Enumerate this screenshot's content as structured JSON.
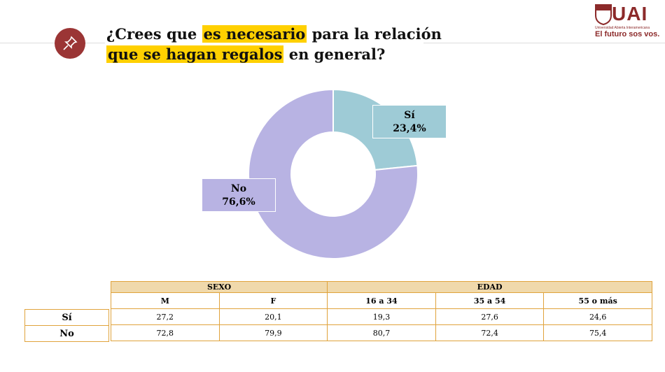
{
  "title": {
    "part1": "¿Crees que ",
    "hl1": "es necesario",
    "part2": " para la relación",
    "hl2": "que se hagan regalos",
    "part3": " en general?"
  },
  "logo": {
    "name": "UAI",
    "subtitle": "Universidad Abierta Interamericana",
    "slogan": "El futuro sos vos."
  },
  "colors": {
    "si": "#9ecbd6",
    "no": "#b8b3e3",
    "highlight": "#ffd000",
    "accent": "#9b3535"
  },
  "chart_data": {
    "type": "pie",
    "donut": true,
    "categories": [
      "Sí",
      "No"
    ],
    "values": [
      23.4,
      76.6
    ],
    "labels": [
      "23,4%",
      "76,6%"
    ]
  },
  "table": {
    "groups": [
      "SEXO",
      "EDAD"
    ],
    "columns": [
      "M",
      "F",
      "16 a 34",
      "35 a 54",
      "55 o más"
    ],
    "rows": [
      {
        "label": "Sí",
        "values": [
          "27,2",
          "20,1",
          "19,3",
          "27,6",
          "24,6"
        ]
      },
      {
        "label": "No",
        "values": [
          "72,8",
          "79,9",
          "80,7",
          "72,4",
          "75,4"
        ]
      }
    ]
  }
}
